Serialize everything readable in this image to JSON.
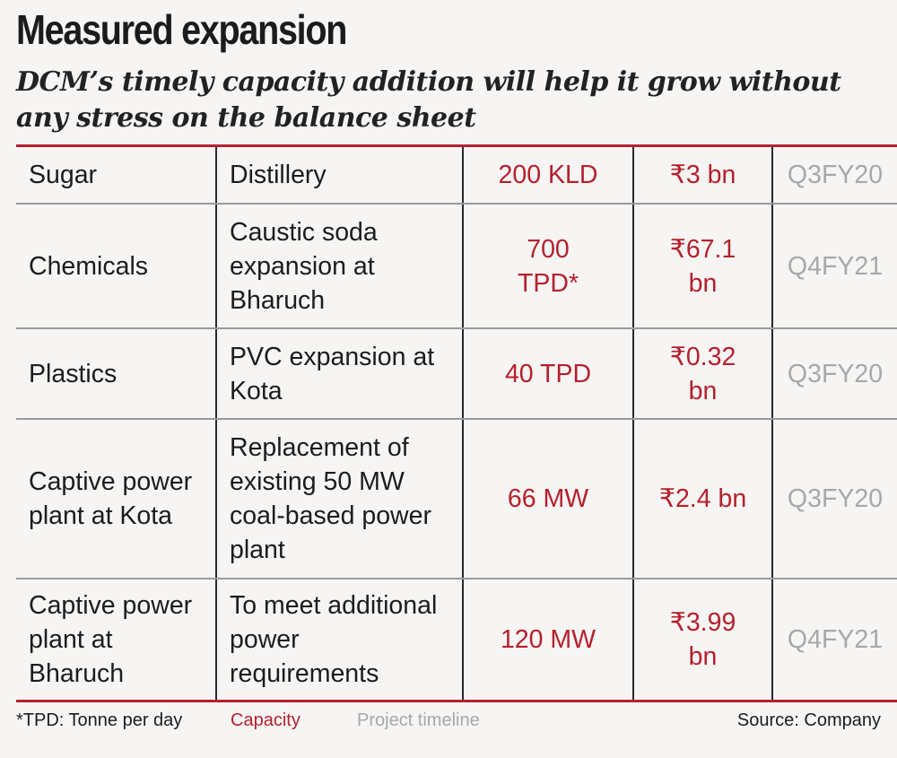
{
  "title": "Measured expansion",
  "subtitle": "DCM’s timely capacity addition will help it grow without any stress on the balance sheet",
  "colors": {
    "accent": "#b5202e",
    "timeline": "#a8a8a8",
    "text": "#1c1c1c"
  },
  "chart_data": {
    "type": "table",
    "columns": [
      "segment",
      "project",
      "capacity",
      "cost",
      "timeline"
    ],
    "rows": [
      {
        "segment": "Sugar",
        "project": "Distillery",
        "capacity": "200 KLD",
        "cost": "₹3 bn",
        "timeline": "Q3FY20"
      },
      {
        "segment": "Chemicals",
        "project": "Caustic soda expansion at Bharuch",
        "capacity": "700 TPD*",
        "cost": "₹67.1 bn",
        "timeline": "Q4FY21"
      },
      {
        "segment": "Plastics",
        "project": "PVC expansion at Kota",
        "capacity": "40 TPD",
        "cost": "₹0.32 bn",
        "timeline": "Q3FY20"
      },
      {
        "segment": "Captive power plant at Kota",
        "project": "Replacement of existing 50 MW coal-based power plant",
        "capacity": "66 MW",
        "cost": "₹2.4 bn",
        "timeline": "Q3FY20"
      },
      {
        "segment": "Captive power plant at Bharuch",
        "project": "To meet additional power requirements",
        "capacity": "120 MW",
        "cost": "₹3.99 bn",
        "timeline": "Q4FY21"
      }
    ]
  },
  "footer": {
    "note": "*TPD: Tonne per day",
    "legend_capacity": "Capacity",
    "legend_timeline": "Project timeline",
    "source": "Source: Company"
  }
}
